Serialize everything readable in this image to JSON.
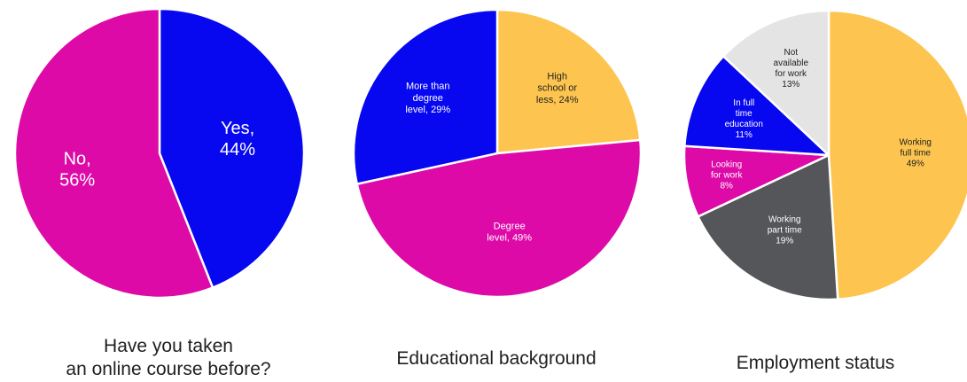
{
  "colors": {
    "magenta": "#dd0aa7",
    "blue": "#0707f0",
    "yellow": "#fdc54f",
    "gray": "#55565a",
    "lightgray": "#e4e4e4",
    "white_text": "#ffffff",
    "dark_text": "#1f1f1f"
  },
  "chart_data": [
    {
      "type": "pie",
      "title": "Have you taken\nan online course before?",
      "slices": [
        {
          "label": "Yes,\n44%",
          "value": 44,
          "color": "blue",
          "text_color": "white_text",
          "font_size": 20
        },
        {
          "label": "No,\n56%",
          "value": 56,
          "color": "magenta",
          "text_color": "white_text",
          "font_size": 20
        }
      ]
    },
    {
      "type": "pie",
      "title": "Educational background",
      "slices": [
        {
          "label": "High\nschool or\nless, 24%",
          "value": 24,
          "color": "yellow",
          "text_color": "dark_text",
          "font_size": 11
        },
        {
          "label": "Degree\nlevel, 49%",
          "value": 49,
          "color": "magenta",
          "text_color": "white_text",
          "font_size": 11
        },
        {
          "label": "More than\ndegree\nlevel, 29%",
          "value": 29,
          "color": "blue",
          "text_color": "white_text",
          "font_size": 11
        }
      ]
    },
    {
      "type": "pie",
      "title": "Employment status",
      "slices": [
        {
          "label": "Working\nfull time\n49%",
          "value": 49,
          "color": "yellow",
          "text_color": "dark_text",
          "font_size": 10
        },
        {
          "label": "Working\npart time\n19%",
          "value": 19,
          "color": "gray",
          "text_color": "white_text",
          "font_size": 10
        },
        {
          "label": "Looking\nfor work\n8%",
          "value": 8,
          "color": "magenta",
          "text_color": "white_text",
          "font_size": 10
        },
        {
          "label": "In full\ntime\neducation\n11%",
          "value": 11,
          "color": "blue",
          "text_color": "white_text",
          "font_size": 10
        },
        {
          "label": "Not\navailable\nfor work\n13%",
          "value": 13,
          "color": "lightgray",
          "text_color": "dark_text",
          "font_size": 10
        }
      ]
    }
  ]
}
